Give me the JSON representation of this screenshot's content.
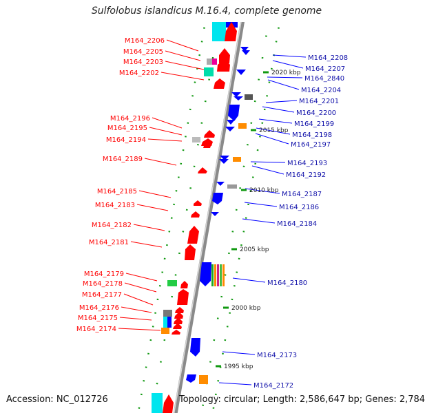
{
  "title": "Sulfolobus islandicus M.16.4, complete genome",
  "accession": "Accession: NC_012726",
  "topology": "Topology: circular; Length: 2,586,647 bp; Genes: 2,784",
  "colors": {
    "forward": "#ff0000",
    "reverse": "#0000ff",
    "backbone": "#999999",
    "tick": "#119911",
    "rna_cyan": "#00e5ee",
    "rna_orange": "#ff8c00",
    "misc_green": "#22cc44",
    "misc_grey": "#777777"
  },
  "kbp_labels": [
    {
      "text": "2020 kbp",
      "kbp": 2020
    },
    {
      "text": "2015 kbp",
      "kbp": 2015
    },
    {
      "text": "2010 kbp",
      "kbp": 2010
    },
    {
      "text": "2005 kbp",
      "kbp": 2005
    },
    {
      "text": "2000 kbp",
      "kbp": 2000
    },
    {
      "text": "1995 kbp",
      "kbp": 1995
    }
  ],
  "genes_left": [
    {
      "name": "M164_2206"
    },
    {
      "name": "M164_2205"
    },
    {
      "name": "M164_2203"
    },
    {
      "name": "M164_2202"
    },
    {
      "name": "M164_2196"
    },
    {
      "name": "M164_2195"
    },
    {
      "name": "M164_2194"
    },
    {
      "name": "M164_2189"
    },
    {
      "name": "M164_2185"
    },
    {
      "name": "M164_2183"
    },
    {
      "name": "M164_2182"
    },
    {
      "name": "M164_2181"
    },
    {
      "name": "M164_2179"
    },
    {
      "name": "M164_2178"
    },
    {
      "name": "M164_2177"
    },
    {
      "name": "M164_2176"
    },
    {
      "name": "M164_2175"
    },
    {
      "name": "M164_2174"
    }
  ],
  "genes_right": [
    {
      "name": "M164_2208"
    },
    {
      "name": "M164_2207"
    },
    {
      "name": "M164_2840"
    },
    {
      "name": "M164_2204"
    },
    {
      "name": "M164_2201"
    },
    {
      "name": "M164_2200"
    },
    {
      "name": "M164_2199"
    },
    {
      "name": "M164_2198"
    },
    {
      "name": "M164_2197"
    },
    {
      "name": "M164_2193"
    },
    {
      "name": "M164_2192"
    },
    {
      "name": "M164_2187"
    },
    {
      "name": "M164_2186"
    },
    {
      "name": "M164_2184"
    },
    {
      "name": "M164_2180"
    },
    {
      "name": "M164_2173"
    },
    {
      "name": "M164_2172"
    }
  ]
}
